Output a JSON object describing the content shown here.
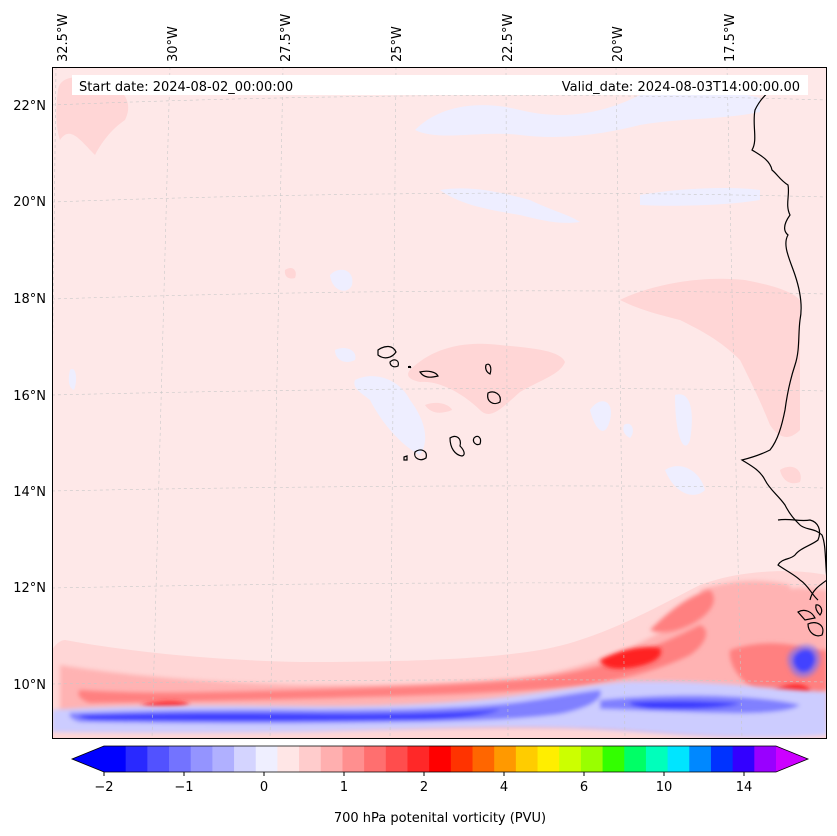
{
  "header": {
    "start_date": "Start date: 2024-08-02_00:00:00",
    "valid_date": "Valid_date: 2024-08-03T14:00:00.00"
  },
  "map": {
    "longitude_labels": [
      "32.5°W",
      "30°W",
      "27.5°W",
      "25°W",
      "22.5°W",
      "20°W",
      "17.5°W"
    ],
    "latitude_labels": [
      "22°N",
      "20°N",
      "18°N",
      "16°N",
      "14°N",
      "12°N",
      "10°N"
    ],
    "background_color": "#fee8e8"
  },
  "colorbar": {
    "label": "700 hPa potenital vorticity (PVU)",
    "tick_labels": [
      "−2",
      "−1",
      "0",
      "1",
      "2",
      "4",
      "6",
      "10",
      "14"
    ],
    "colors": [
      "#0000ff",
      "#2929ff",
      "#5252ff",
      "#7373ff",
      "#9494ff",
      "#b0b0ff",
      "#d4d4ff",
      "#efefff",
      "#ffe6e6",
      "#ffcccc",
      "#ffafaf",
      "#ff8f8f",
      "#ff6f6f",
      "#ff4d4d",
      "#ff2828",
      "#ff0000",
      "#ff3300",
      "#ff6600",
      "#ff9900",
      "#ffcc00",
      "#ffee00",
      "#ccff00",
      "#99ff00",
      "#33ff00",
      "#00ff66",
      "#00ffbb",
      "#00e5ff",
      "#0088ff",
      "#0033ff",
      "#3300ff",
      "#9900ff"
    ],
    "extend_low_color": "#0000ff",
    "extend_high_color": "#cc00ff"
  }
}
